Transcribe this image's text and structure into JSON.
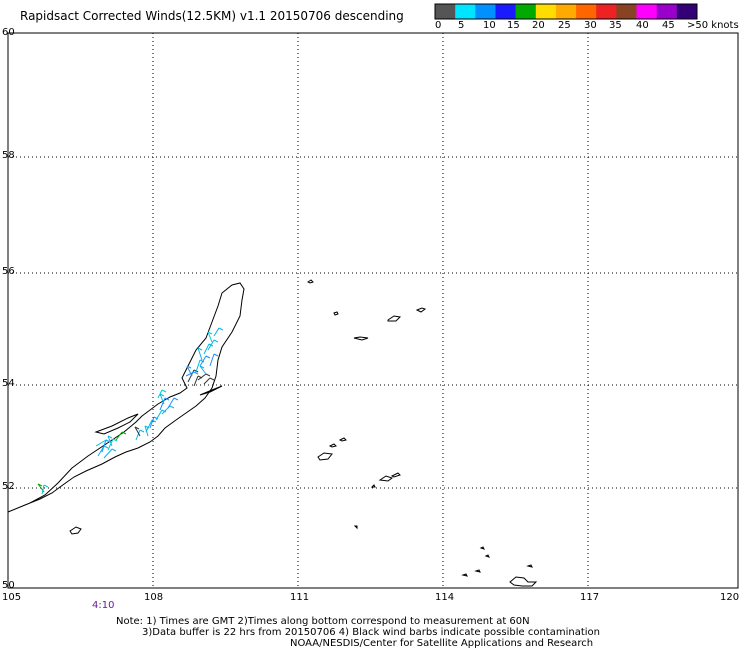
{
  "title": "Rapidsact Corrected Winds(12.5KM) v1.1 20150706 descending",
  "legend": {
    "labels": [
      "0",
      "5",
      "10",
      "15",
      "20",
      "25",
      "30",
      "35",
      "40",
      "45",
      ">50 knots"
    ],
    "colors": [
      "#555555",
      "#00e5ff",
      "#0090ff",
      "#1a1aff",
      "#00aa00",
      "#ffdd00",
      "#ffaa00",
      "#ff6600",
      "#ee2222",
      "#884422",
      "#ff00ff",
      "#9900cc",
      "#330077"
    ]
  },
  "axes": {
    "latitudes": [
      "60",
      "58",
      "56",
      "54",
      "52",
      "50"
    ],
    "longitudes": [
      "105",
      "108",
      "111",
      "114",
      "117",
      "120"
    ],
    "lat_range": [
      50,
      60
    ],
    "lon_range": [
      105,
      120
    ],
    "grid": "dotted"
  },
  "time_label": "4:10",
  "notes": [
    "Note: 1) Times are GMT 2)Times along bottom correspond to measurement at 60N",
    "3)Data buffer is 22 hrs from 20150706 4) Black wind barbs indicate possible contamination",
    "NOAA/NESDIS/Center for Satellite Applications and Research"
  ]
}
